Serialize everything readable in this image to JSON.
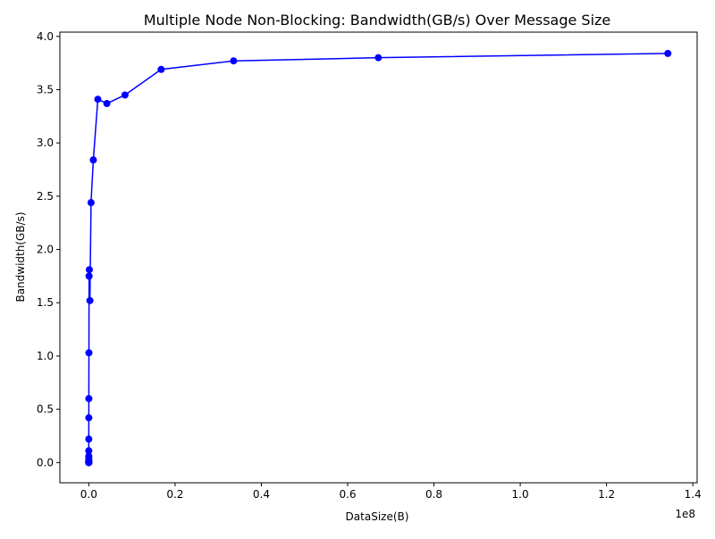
{
  "chart_data": {
    "type": "line",
    "title": "Multiple Node Non-Blocking: Bandwidth(GB/s) Over Message Size",
    "xlabel": "DataSize(B)",
    "ylabel": "Bandwidth(GB/s)",
    "x_offset_label": "1e8",
    "x_scale": 100000000,
    "xlim": [
      -6700000,
      141000000
    ],
    "ylim": [
      -0.19,
      4.04
    ],
    "x_ticks": [
      0,
      20000000,
      40000000,
      60000000,
      80000000,
      100000000,
      120000000,
      140000000
    ],
    "x_tick_labels": [
      "0.0",
      "0.2",
      "0.4",
      "0.6",
      "0.8",
      "1.0",
      "1.2",
      "1.4"
    ],
    "y_ticks": [
      0.0,
      0.5,
      1.0,
      1.5,
      2.0,
      2.5,
      3.0,
      3.5,
      4.0
    ],
    "y_tick_labels": [
      "0.0",
      "0.5",
      "1.0",
      "1.5",
      "2.0",
      "2.5",
      "3.0",
      "3.5",
      "4.0"
    ],
    "grid": false,
    "legend": "none",
    "series": [
      {
        "color": "#0000ff",
        "marker": "circle",
        "x": [
          1,
          2,
          4,
          8,
          16,
          32,
          64,
          128,
          256,
          512,
          1024,
          2048,
          4096,
          8192,
          16384,
          32768,
          65536,
          131072,
          262144,
          524288,
          1048576,
          2097152,
          4194304,
          8388608,
          16777216,
          33554432,
          67108864,
          134217728
        ],
        "y": [
          0.0,
          0.0,
          0.0,
          0.0,
          0.0,
          0.0,
          0.01,
          0.01,
          0.02,
          0.04,
          0.06,
          0.11,
          0.22,
          0.42,
          0.6,
          1.03,
          1.75,
          1.81,
          1.52,
          2.44,
          2.84,
          3.41,
          3.37,
          3.45,
          3.69,
          3.77,
          3.8,
          3.84
        ]
      }
    ]
  }
}
